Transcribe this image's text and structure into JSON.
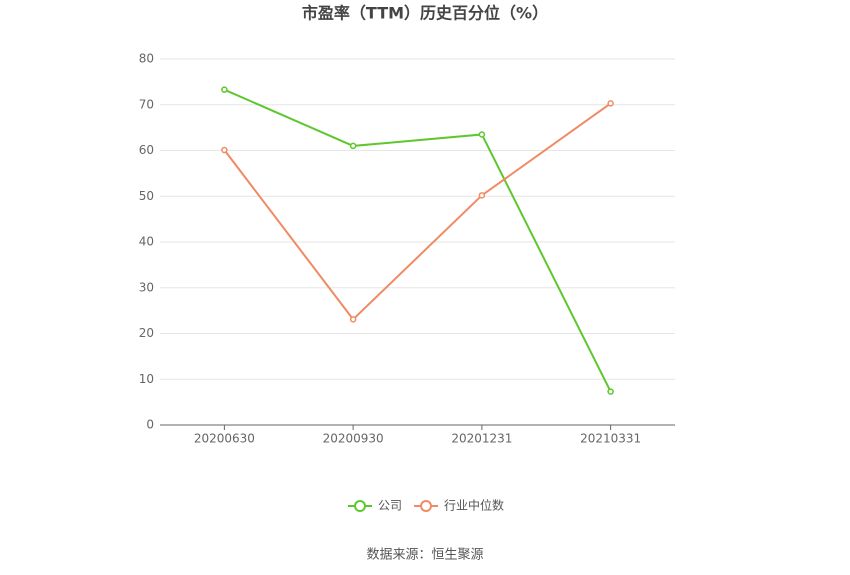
{
  "chart_data": {
    "type": "line",
    "title": "市盈率（TTM）历史百分位（%）",
    "categories": [
      "20200630",
      "20200930",
      "20201231",
      "20210331"
    ],
    "series": [
      {
        "name": "公司",
        "color": "#5ec72e",
        "values": [
          73.3,
          61.0,
          63.5,
          7.3
        ]
      },
      {
        "name": "行业中位数",
        "color": "#f08a64",
        "values": [
          60.1,
          23.1,
          50.2,
          70.3
        ]
      }
    ],
    "ylim": [
      0,
      80
    ],
    "yticks": [
      0,
      10,
      20,
      30,
      40,
      50,
      60,
      70,
      80
    ],
    "grid": true,
    "legend": "bottom",
    "source": "数据来源：恒生聚源"
  }
}
